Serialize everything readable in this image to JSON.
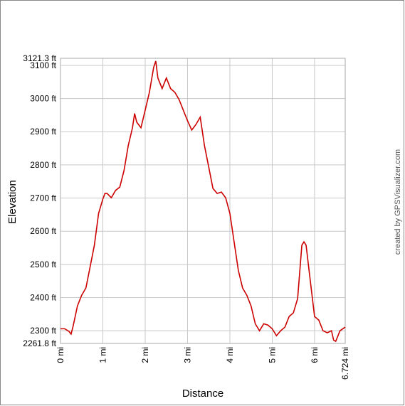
{
  "chart_data": {
    "type": "line",
    "x_label": "Distance",
    "y_label": "Elevation",
    "credit": "created by GPSVisualizer.com",
    "xlim": [
      0,
      6.724
    ],
    "ylim": [
      2261.8,
      3121.3
    ],
    "xticks": [
      {
        "value": 0,
        "label": "0 mi"
      },
      {
        "value": 1,
        "label": "1 mi"
      },
      {
        "value": 2,
        "label": "2 mi"
      },
      {
        "value": 3,
        "label": "3 mi"
      },
      {
        "value": 4,
        "label": "4 mi"
      },
      {
        "value": 5,
        "label": "5 mi"
      },
      {
        "value": 6,
        "label": "6 mi"
      },
      {
        "value": 6.724,
        "label": "6.724 mi"
      }
    ],
    "yticks": [
      {
        "value": 2261.8,
        "label": "2261.8 ft"
      },
      {
        "value": 2300,
        "label": "2300 ft"
      },
      {
        "value": 2400,
        "label": "2400 ft"
      },
      {
        "value": 2500,
        "label": "2500 ft"
      },
      {
        "value": 2600,
        "label": "2600 ft"
      },
      {
        "value": 2700,
        "label": "2700 ft"
      },
      {
        "value": 2800,
        "label": "2800 ft"
      },
      {
        "value": 2900,
        "label": "2900 ft"
      },
      {
        "value": 3000,
        "label": "3000 ft"
      },
      {
        "value": 3100,
        "label": "3100 ft"
      },
      {
        "value": 3121.3,
        "label": "3121.3 ft"
      }
    ],
    "grid": true,
    "series": [
      {
        "color": "#cc0000",
        "x": [
          0,
          0.1,
          0.2,
          0.25,
          0.3,
          0.4,
          0.5,
          0.6,
          0.7,
          0.8,
          0.9,
          1.0,
          1.05,
          1.1,
          1.2,
          1.3,
          1.4,
          1.5,
          1.6,
          1.7,
          1.75,
          1.8,
          1.9,
          2.0,
          2.1,
          2.2,
          2.25,
          2.3,
          2.4,
          2.5,
          2.6,
          2.7,
          2.8,
          2.9,
          3.0,
          3.1,
          3.2,
          3.3,
          3.4,
          3.5,
          3.6,
          3.7,
          3.8,
          3.9,
          4.0,
          4.1,
          4.2,
          4.3,
          4.4,
          4.5,
          4.6,
          4.7,
          4.8,
          4.9,
          5.0,
          5.1,
          5.2,
          5.3,
          5.4,
          5.5,
          5.6,
          5.7,
          5.75,
          5.8,
          5.9,
          6.0,
          6.1,
          6.2,
          6.3,
          6.4,
          6.45,
          6.5,
          6.6,
          6.724
        ],
        "values": [
          2306,
          2306,
          2298,
          2290,
          2315,
          2375,
          2407,
          2429,
          2493,
          2558,
          2654,
          2697,
          2714,
          2714,
          2701,
          2723,
          2733,
          2783,
          2858,
          2912,
          2955,
          2929,
          2912,
          2965,
          3019,
          3094,
          3113,
          3062,
          3030,
          3062,
          3030,
          3019,
          2997,
          2965,
          2933,
          2905,
          2922,
          2944,
          2858,
          2794,
          2729,
          2714,
          2718,
          2701,
          2654,
          2568,
          2482,
          2429,
          2407,
          2375,
          2321,
          2300,
          2321,
          2317,
          2306,
          2285,
          2300,
          2311,
          2343,
          2354,
          2397,
          2558,
          2568,
          2558,
          2450,
          2343,
          2332,
          2300,
          2294,
          2300,
          2272,
          2268,
          2300,
          2311
        ]
      }
    ]
  }
}
